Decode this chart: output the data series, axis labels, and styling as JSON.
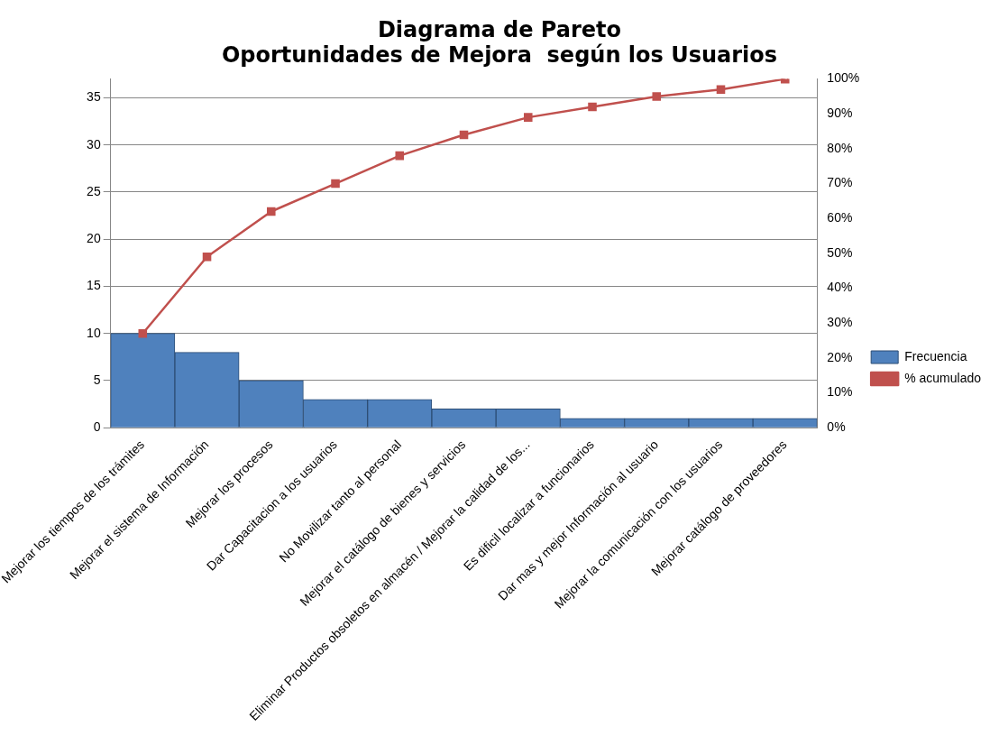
{
  "chart_data": {
    "type": "bar",
    "title": "Diagrama de Pareto\nOportunidades de Mejora  según los Usuarios",
    "categories": [
      "Mejorar los tiempos de los trámites",
      "Mejorar el sistema de Información",
      "Mejorar los procesos",
      "Dar Capacitacion a los usuarios",
      "No Movilizar tanto al personal",
      "Mejorar el catálogo de bienes y servicios",
      "Eliminar Productos obsoletos en almacén / Mejorar la calidad de los...",
      "Es dificil localizar a funcionarios",
      "Dar mas y mejor Información al usuario",
      "Mejorar la comunicación con los usuarios",
      "Mejorar catálogo de proveedores"
    ],
    "series": [
      {
        "name": "Frecuencia",
        "color": "#4f81bd",
        "values": [
          10,
          8,
          5,
          3,
          3,
          2,
          2,
          1,
          1,
          1,
          1
        ]
      },
      {
        "name": "% acumulado",
        "type": "line",
        "axis": "y2",
        "color": "#c0504d",
        "values": [
          27,
          49,
          62,
          70,
          78,
          84,
          89,
          92,
          95,
          97,
          100
        ]
      }
    ],
    "ylim": [
      0,
      37
    ],
    "yticks": [
      0,
      5,
      10,
      15,
      20,
      25,
      30,
      35
    ],
    "y2lim": [
      0,
      100
    ],
    "y2ticks": [
      {
        "value": 0,
        "label": "0%"
      },
      {
        "value": 10,
        "label": "10%"
      },
      {
        "value": 20,
        "label": "20%"
      },
      {
        "value": 30,
        "label": "30%"
      },
      {
        "value": 40,
        "label": "40%"
      },
      {
        "value": 50,
        "label": "50%"
      },
      {
        "value": 60,
        "label": "60%"
      },
      {
        "value": 70,
        "label": "70%"
      },
      {
        "value": 80,
        "label": "80%"
      },
      {
        "value": 90,
        "label": "90%"
      },
      {
        "value": 100,
        "label": "100%"
      }
    ],
    "grid": "y",
    "legend": "right",
    "marker": "square",
    "line_style": "solid"
  }
}
